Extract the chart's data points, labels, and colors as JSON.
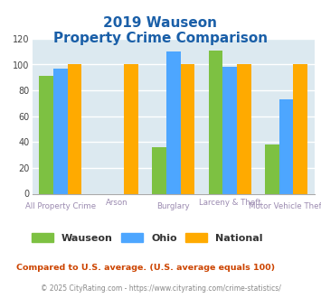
{
  "title_line1": "2019 Wauseon",
  "title_line2": "Property Crime Comparison",
  "categories": [
    "All Property Crime",
    "Arson",
    "Burglary",
    "Larceny & Theft",
    "Motor Vehicle Theft"
  ],
  "wauseon": [
    91,
    0,
    36,
    111,
    38
  ],
  "ohio": [
    97,
    0,
    110,
    98,
    73
  ],
  "national": [
    100,
    100,
    100,
    100,
    100
  ],
  "color_wauseon": "#7dc142",
  "color_ohio": "#4da6ff",
  "color_national": "#ffaa00",
  "ylim": [
    0,
    120
  ],
  "yticks": [
    0,
    20,
    40,
    60,
    80,
    100,
    120
  ],
  "bg_color": "#dce9f0",
  "grid_color": "#ffffff",
  "title_color": "#1a5fa8",
  "xlabel_color": "#9b8ab0",
  "footnote1": "Compared to U.S. average. (U.S. average equals 100)",
  "footnote2": "© 2025 CityRating.com - https://www.cityrating.com/crime-statistics/",
  "footnote1_color": "#cc4400",
  "footnote2_color": "#888888"
}
